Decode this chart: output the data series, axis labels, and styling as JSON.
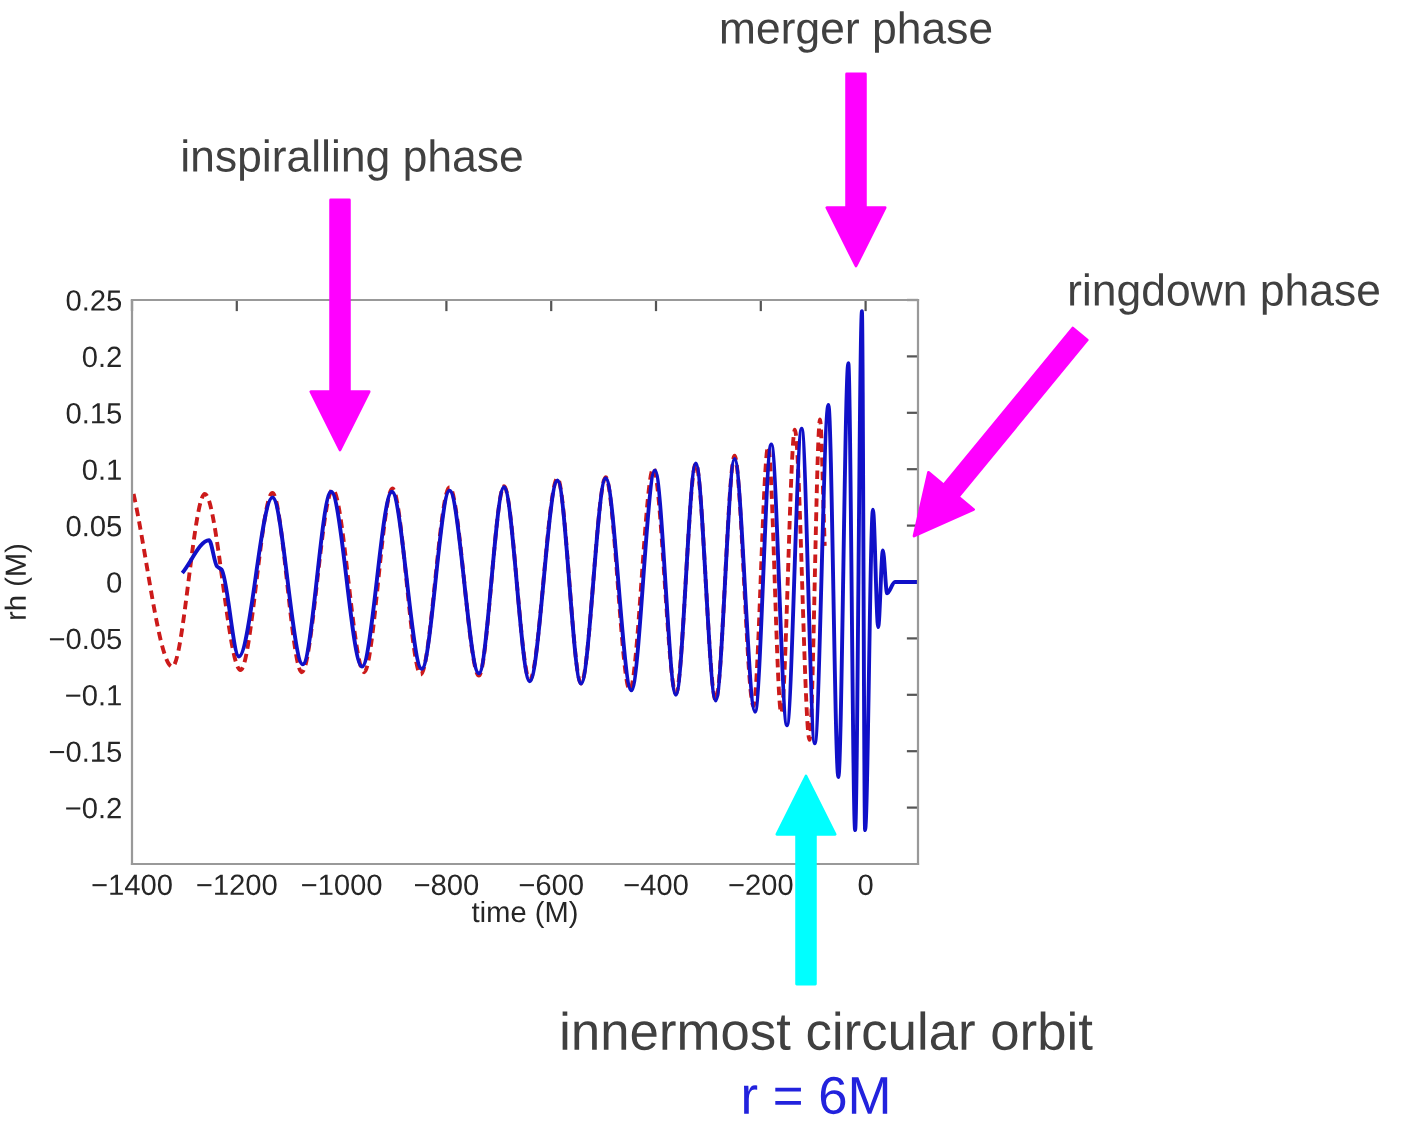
{
  "chart_data": {
    "type": "line",
    "xlabel": "time (M)",
    "ylabel": "rh (M)",
    "xlim": [
      -1400,
      100
    ],
    "xticks": [
      {
        "value": -1400,
        "label": "−1400"
      },
      {
        "value": -1200,
        "label": "−1200"
      },
      {
        "value": -1000,
        "label": "−1000"
      },
      {
        "value": -800,
        "label": "−800"
      },
      {
        "value": -600,
        "label": "−600"
      },
      {
        "value": -400,
        "label": "−400"
      },
      {
        "value": -200,
        "label": "−200"
      },
      0
    ],
    "ylim": [
      -0.25,
      0.25
    ],
    "yticks": [
      {
        "value": -0.2,
        "label": "−0.2"
      },
      {
        "value": -0.15,
        "label": "−0.15"
      },
      {
        "value": -0.1,
        "label": "−0.1"
      },
      {
        "value": -0.05,
        "label": "−0.05"
      },
      0,
      0.05,
      0.1,
      0.15,
      0.2,
      0.25
    ],
    "grid": false,
    "series": [
      {
        "color": "#cc1a1a",
        "line_style": "dashed",
        "x": [
          -1397,
          -1323,
          -1261,
          -1193,
          -1132,
          -1076,
          -1017,
          -957,
          -903,
          -849,
          -794,
          -738,
          -690,
          -641,
          -588,
          -543,
          -496,
          -450,
          -405,
          -362,
          -324,
          -286,
          -250,
          -214,
          -186,
          -161,
          -135,
          -107,
          -87,
          -78
        ],
        "values": [
          0.078,
          -0.075,
          0.078,
          -0.078,
          0.079,
          -0.08,
          0.082,
          -0.08,
          0.083,
          -0.082,
          0.084,
          -0.083,
          0.085,
          -0.087,
          0.092,
          -0.09,
          0.093,
          -0.096,
          0.101,
          -0.099,
          0.105,
          -0.105,
          0.112,
          -0.11,
          0.12,
          -0.116,
          0.135,
          -0.14,
          0.144,
          0.032
        ]
      },
      {
        "color": "#1010c8",
        "line_style": "solid",
        "x": [
          -1304,
          -1253,
          -1238,
          -1229,
          -1196,
          -1132,
          -1074,
          -1020,
          -961,
          -904,
          -847,
          -794,
          -738,
          -690,
          -641,
          -588,
          -543,
          -496,
          -447,
          -402,
          -362,
          -324,
          -286,
          -250,
          -211,
          -180,
          -150,
          -122,
          -97,
          -71,
          -52,
          -33,
          -20,
          -7,
          -1,
          14,
          24,
          33,
          41,
          56,
          100
        ],
        "values": [
          0.008,
          0.037,
          0.014,
          0.011,
          -0.066,
          0.075,
          -0.073,
          0.08,
          -0.075,
          0.08,
          -0.077,
          0.081,
          -0.081,
          0.084,
          -0.088,
          0.09,
          -0.09,
          0.092,
          -0.096,
          0.099,
          -0.1,
          0.105,
          -0.105,
          0.109,
          -0.115,
          0.122,
          -0.127,
          0.136,
          -0.143,
          0.157,
          -0.173,
          0.194,
          -0.22,
          0.24,
          -0.22,
          0.064,
          -0.04,
          0.028,
          -0.01,
          0,
          0
        ]
      }
    ],
    "annotations": [
      "inspiralling phase",
      "merger phase",
      "ringdown phase",
      "innermost circular orbit",
      "r = 6M"
    ]
  }
}
